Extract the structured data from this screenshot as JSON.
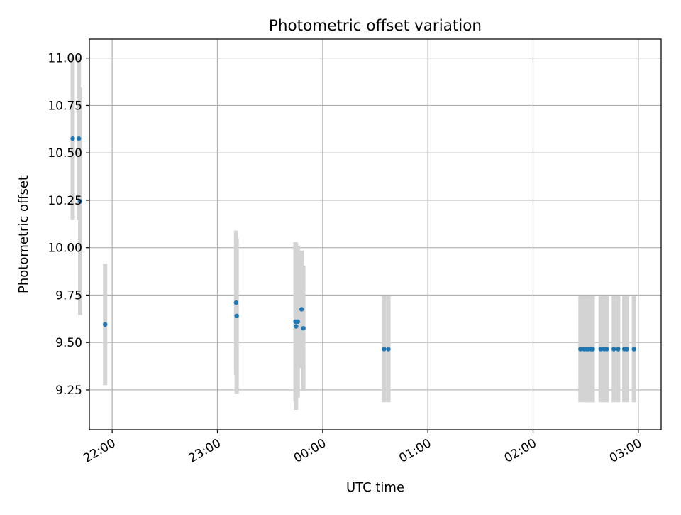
{
  "chart_data": {
    "type": "scatter",
    "title": "Photometric offset variation",
    "xlabel": "UTC time",
    "ylabel": "Photometric offset",
    "grid": true,
    "legend": "none",
    "xlim": [
      "21:47",
      "03:13"
    ],
    "ylim": [
      9.04,
      11.1
    ],
    "x_ticks": [
      "22:00",
      "23:00",
      "00:00",
      "01:00",
      "02:00",
      "03:00"
    ],
    "y_ticks": [
      "9.25",
      "9.50",
      "9.75",
      "10.00",
      "10.25",
      "10.50",
      "10.75",
      "11.00"
    ],
    "series": [
      {
        "marker_color": "#1f77b4",
        "error_bar_color": "#d3d3d3",
        "points": [
          {
            "time": "21:37:30",
            "y": 10.575,
            "err": 0.43
          },
          {
            "time": "21:41:00",
            "y": 10.575,
            "err": 0.43
          },
          {
            "time": "21:41:45",
            "y": 10.245,
            "err": 0.6
          },
          {
            "time": "21:56:00",
            "y": 9.595,
            "err": 0.32
          },
          {
            "time": "23:10:40",
            "y": 9.71,
            "err": 0.38
          },
          {
            "time": "23:11:00",
            "y": 9.64,
            "err": 0.41
          },
          {
            "time": "23:44:30",
            "y": 9.61,
            "err": 0.42
          },
          {
            "time": "23:44:50",
            "y": 9.585,
            "err": 0.44
          },
          {
            "time": "23:45:50",
            "y": 9.61,
            "err": 0.4
          },
          {
            "time": "23:48:00",
            "y": 9.675,
            "err": 0.31
          },
          {
            "time": "23:49:00",
            "y": 9.575,
            "err": 0.33
          },
          {
            "time": "00:35:00",
            "y": 9.465,
            "err": 0.28
          },
          {
            "time": "00:37:30",
            "y": 9.465,
            "err": 0.28
          },
          {
            "time": "02:27:00",
            "y": 9.465,
            "err": 0.28
          },
          {
            "time": "02:29:00",
            "y": 9.465,
            "err": 0.28
          },
          {
            "time": "02:30:30",
            "y": 9.465,
            "err": 0.28
          },
          {
            "time": "02:31:30",
            "y": 9.465,
            "err": 0.28
          },
          {
            "time": "02:33:00",
            "y": 9.465,
            "err": 0.28
          },
          {
            "time": "02:34:00",
            "y": 9.465,
            "err": 0.28
          },
          {
            "time": "02:38:30",
            "y": 9.465,
            "err": 0.28
          },
          {
            "time": "02:40:30",
            "y": 9.465,
            "err": 0.28
          },
          {
            "time": "02:42:00",
            "y": 9.465,
            "err": 0.28
          },
          {
            "time": "02:46:00",
            "y": 9.465,
            "err": 0.28
          },
          {
            "time": "02:48:30",
            "y": 9.465,
            "err": 0.28
          },
          {
            "time": "02:52:00",
            "y": 9.465,
            "err": 0.28
          },
          {
            "time": "02:53:30",
            "y": 9.465,
            "err": 0.28
          },
          {
            "time": "02:57:30",
            "y": 9.465,
            "err": 0.28
          }
        ]
      }
    ]
  }
}
